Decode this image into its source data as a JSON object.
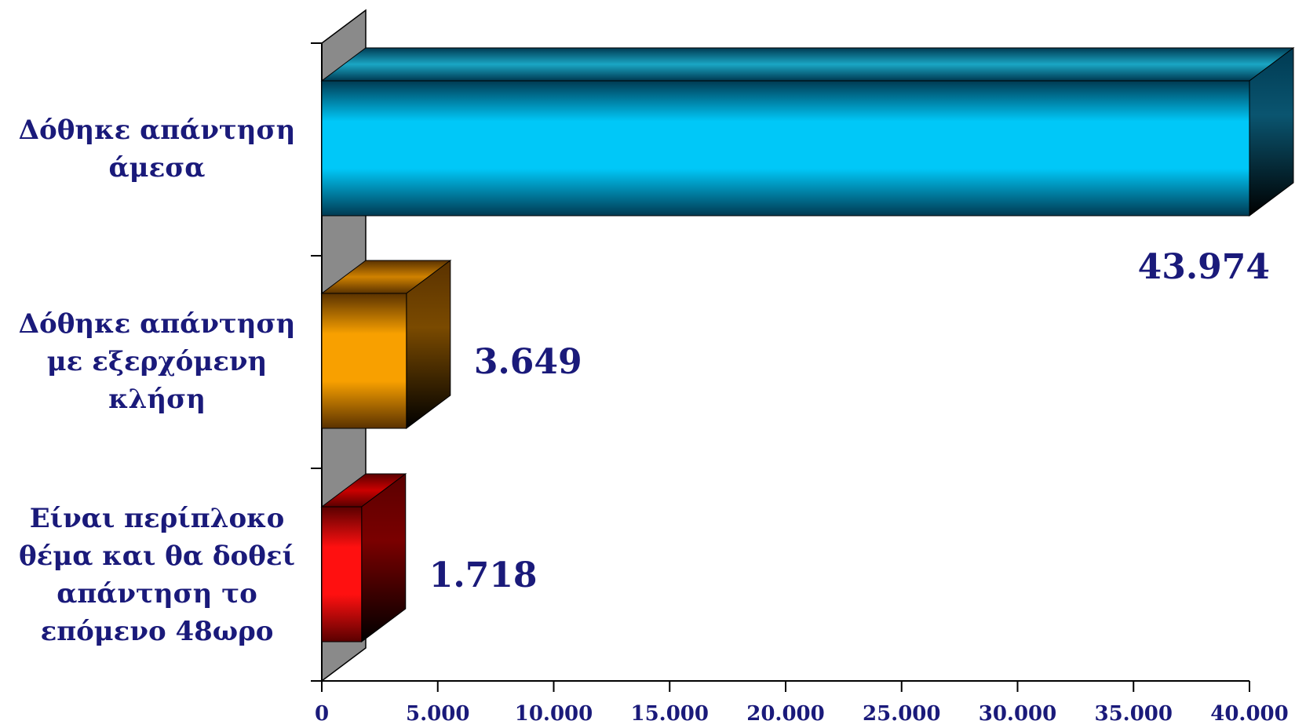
{
  "chart_data": {
    "type": "bar",
    "orientation": "horizontal",
    "categories": [
      [
        "Δόθηκε απάντηση",
        "άμεσα"
      ],
      [
        "Δόθηκε απάντηση",
        "με εξερχόμενη",
        "κλήση"
      ],
      [
        "Είναι περίπλοκο",
        "θέμα και θα δοθεί",
        "απάντηση το",
        "επόμενο 48ωρο"
      ]
    ],
    "values": [
      43974,
      3649,
      1718
    ],
    "value_labels": [
      "43.974",
      "3.649",
      "1.718"
    ],
    "xlim": [
      0,
      40000
    ],
    "xticks": [
      0,
      5000,
      10000,
      15000,
      20000,
      25000,
      30000,
      35000,
      40000
    ],
    "xtick_labels": [
      "0",
      "5.000",
      "10.000",
      "15.000",
      "20.000",
      "25.000",
      "30.000",
      "35.000",
      "40.000"
    ],
    "title": "",
    "xlabel": "",
    "ylabel": "",
    "grid": false,
    "legend": "none",
    "style": "3d",
    "bar_colors": [
      {
        "face": "#00c8f8",
        "edge": "#003a52",
        "top": "#1aa6c4",
        "side": "#0a5570"
      },
      {
        "face": "#f8a000",
        "edge": "#5a3200",
        "top": "#d08200",
        "side": "#7a4a00"
      },
      {
        "face": "#ff1010",
        "edge": "#5a0000",
        "top": "#cc0000",
        "side": "#7a0000"
      }
    ],
    "wall_color": "#8a8a8a",
    "text_color": "#1a1a7a"
  }
}
